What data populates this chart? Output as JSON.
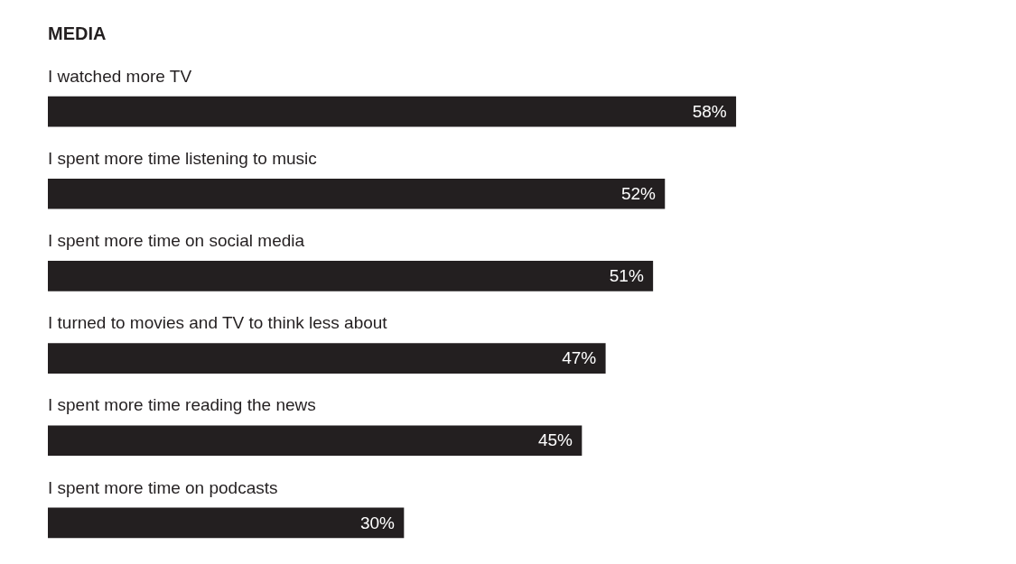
{
  "chart_data": {
    "type": "bar",
    "orientation": "horizontal",
    "title": "MEDIA",
    "categories": [
      "I watched more TV",
      "I spent more time listening to music",
      "I spent more time on social media",
      "I turned to movies and TV to think less about",
      "I spent more time reading the news",
      "I spent more time on podcasts"
    ],
    "values": [
      58,
      52,
      51,
      47,
      45,
      30
    ],
    "value_labels": [
      "58%",
      "52%",
      "51%",
      "47%",
      "45%",
      "30%"
    ],
    "color": "#231f20",
    "legend": false,
    "tick_labels": false
  }
}
